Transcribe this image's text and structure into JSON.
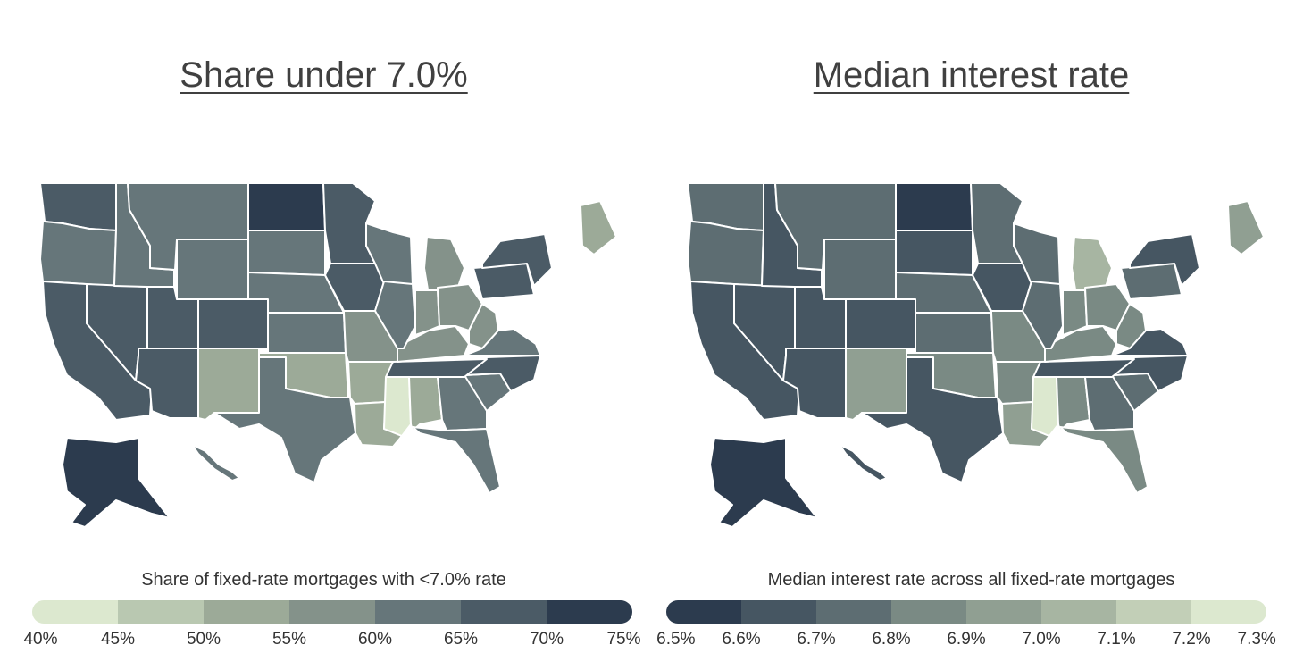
{
  "left": {
    "title": "Share under 7.0%",
    "legend_title": "Share of fixed-rate mortgages with <7.0% rate",
    "legend_ticks": [
      "40%",
      "45%",
      "50%",
      "55%",
      "60%",
      "65%",
      "70%",
      "75%"
    ],
    "legend_colors": [
      "#dce8cf",
      "#b9c8b1",
      "#9caa98",
      "#84928a",
      "#66767a",
      "#4b5b66",
      "#2c3b4e"
    ]
  },
  "right": {
    "title": "Median interest rate",
    "legend_title": "Median interest rate across all fixed-rate mortgages",
    "legend_ticks": [
      "6.5%",
      "6.6%",
      "6.7%",
      "6.8%",
      "6.9%",
      "7.0%",
      "7.1%",
      "7.2%",
      "7.3%"
    ],
    "legend_colors": [
      "#2c3b4e",
      "#465662",
      "#5d6d72",
      "#7a8a84",
      "#909f92",
      "#a7b5a2",
      "#c2cfb7",
      "#dce8cf"
    ]
  },
  "chart_data": [
    {
      "type": "choropleth",
      "title": "Share under 7.0%",
      "legend_title": "Share of fixed-rate mortgages with <7.0% rate",
      "bins": [
        "40%",
        "45%",
        "50%",
        "55%",
        "60%",
        "65%",
        "70%",
        "75%"
      ],
      "states": {
        "WA": "65-70%",
        "OR": "60-65%",
        "CA": "65-70%",
        "NV": "65-70%",
        "ID": "60-65%",
        "MT": "60-65%",
        "WY": "60-65%",
        "UT": "65-70%",
        "AZ": "65-70%",
        "CO": "65-70%",
        "NM": "50-55%",
        "ND": "70-75%",
        "SD": "60-65%",
        "NE": "60-65%",
        "KS": "60-65%",
        "OK": "50-55%",
        "TX": "60-65%",
        "MN": "65-70%",
        "IA": "65-70%",
        "MO": "55-60%",
        "AR": "50-55%",
        "LA": "50-55%",
        "WI": "60-65%",
        "IL": "60-65%",
        "MI": "55-60%",
        "IN": "55-60%",
        "OH": "55-60%",
        "KY": "55-60%",
        "TN": "65-70%",
        "MS": "40-45%",
        "AL": "50-55%",
        "GA": "60-65%",
        "FL": "60-65%",
        "SC": "60-65%",
        "NC": "65-70%",
        "VA": "60-65%",
        "WV": "55-60%",
        "PA": "65-70%",
        "NY": "65-70%",
        "ME": "50-55%",
        "AK": "70-75%",
        "HI": "60-65%"
      }
    },
    {
      "type": "choropleth",
      "title": "Median interest rate",
      "legend_title": "Median interest rate across all fixed-rate mortgages",
      "bins": [
        "6.5%",
        "6.6%",
        "6.7%",
        "6.8%",
        "6.9%",
        "7.0%",
        "7.1%",
        "7.2%",
        "7.3%"
      ],
      "states": {
        "WA": "6.7-6.8%",
        "OR": "6.7-6.8%",
        "CA": "6.6-6.7%",
        "NV": "6.6-6.7%",
        "ID": "6.6-6.7%",
        "MT": "6.7-6.8%",
        "WY": "6.7-6.8%",
        "UT": "6.6-6.7%",
        "AZ": "6.6-6.7%",
        "CO": "6.6-6.7%",
        "NM": "6.9-7.0%",
        "ND": "6.5-6.6%",
        "SD": "6.6-6.7%",
        "NE": "6.7-6.8%",
        "KS": "6.7-6.8%",
        "OK": "6.8-6.9%",
        "TX": "6.6-6.7%",
        "MN": "6.7-6.8%",
        "IA": "6.6-6.7%",
        "MO": "6.8-6.9%",
        "AR": "6.8-6.9%",
        "LA": "6.9-7.0%",
        "WI": "6.7-6.8%",
        "IL": "6.7-6.8%",
        "MI": "7.0-7.1%",
        "IN": "6.8-6.9%",
        "OH": "6.8-6.9%",
        "KY": "6.8-6.9%",
        "TN": "6.6-6.7%",
        "MS": "7.2-7.3%",
        "AL": "6.8-6.9%",
        "GA": "6.7-6.8%",
        "FL": "6.8-6.9%",
        "SC": "6.7-6.8%",
        "NC": "6.6-6.7%",
        "VA": "6.6-6.7%",
        "WV": "6.8-6.9%",
        "PA": "6.7-6.8%",
        "NY": "6.6-6.7%",
        "ME": "6.9-7.0%",
        "AK": "6.5-6.6%",
        "HI": "6.6-6.7%"
      }
    }
  ]
}
